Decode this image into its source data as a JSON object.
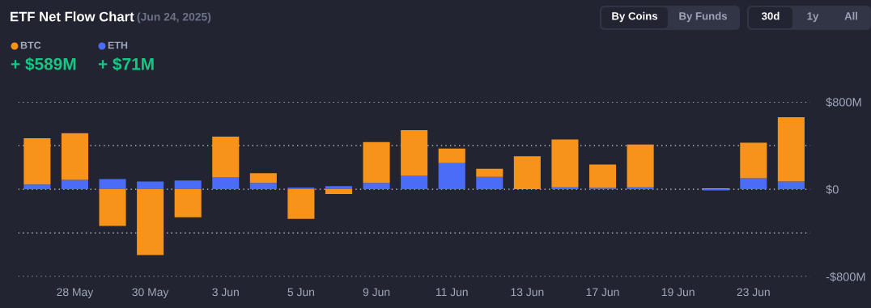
{
  "chart_data": {
    "type": "bar",
    "title": "ETF Net Flow Chart",
    "subtitle": "(Jun 24, 2025)",
    "categories": [
      null,
      "28 May",
      null,
      "30 May",
      null,
      "3 Jun",
      null,
      "5 Jun",
      null,
      "9 Jun",
      null,
      "11 Jun",
      null,
      "13 Jun",
      null,
      "17 Jun",
      null,
      "19 Jun",
      null,
      "23 Jun",
      null
    ],
    "stacked": true,
    "series": [
      {
        "name": "ETH",
        "color": "#4a6cf7",
        "values": [
          43,
          86,
          94,
          71,
          81,
          109,
          58,
          15,
          28,
          58,
          124,
          240,
          114,
          0,
          18,
          13,
          18,
          null,
          -10,
          101,
          71
        ]
      },
      {
        "name": "BTC",
        "color": "#f7931a",
        "values": [
          425,
          428,
          -336,
          -602,
          -256,
          374,
          89,
          -271,
          -43,
          375,
          417,
          134,
          74,
          302,
          439,
          214,
          392,
          null,
          8,
          325,
          589
        ]
      }
    ],
    "ylim": [
      -800,
      800
    ],
    "yticks": [
      {
        "value": -800,
        "label": "-$800M"
      },
      {
        "value": -400,
        "label": null
      },
      {
        "value": 0,
        "label": "$0"
      },
      {
        "value": 400,
        "label": null
      },
      {
        "value": 800,
        "label": "$800M"
      }
    ],
    "grid": "y",
    "legend": "top left",
    "annotations": [
      "+ $589M",
      "+ $71M",
      "By Coins",
      "By Funds",
      "30d",
      "1y",
      "All"
    ]
  }
}
